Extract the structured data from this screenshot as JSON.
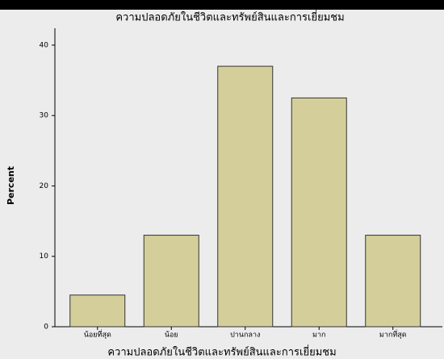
{
  "chart_data": {
    "type": "bar",
    "title": "ความปลอดภัยในชีวิตและทรัพย์สินและการเยี่ยมชม",
    "x_label": "ความปลอดภัยในชีวิตและทรัพย์สินและการเยี่ยมชม",
    "y_label": "Percent",
    "categories": [
      "น้อยที่สุด",
      "น้อย",
      "ปานกลาง",
      "มาก",
      "มากที่สุด"
    ],
    "values": [
      4.5,
      13,
      37,
      32.5,
      13
    ],
    "color": "#d4cf9a",
    "ylim": [
      0,
      42.4
    ],
    "yticks": [
      0,
      10,
      20,
      30,
      40
    ]
  }
}
